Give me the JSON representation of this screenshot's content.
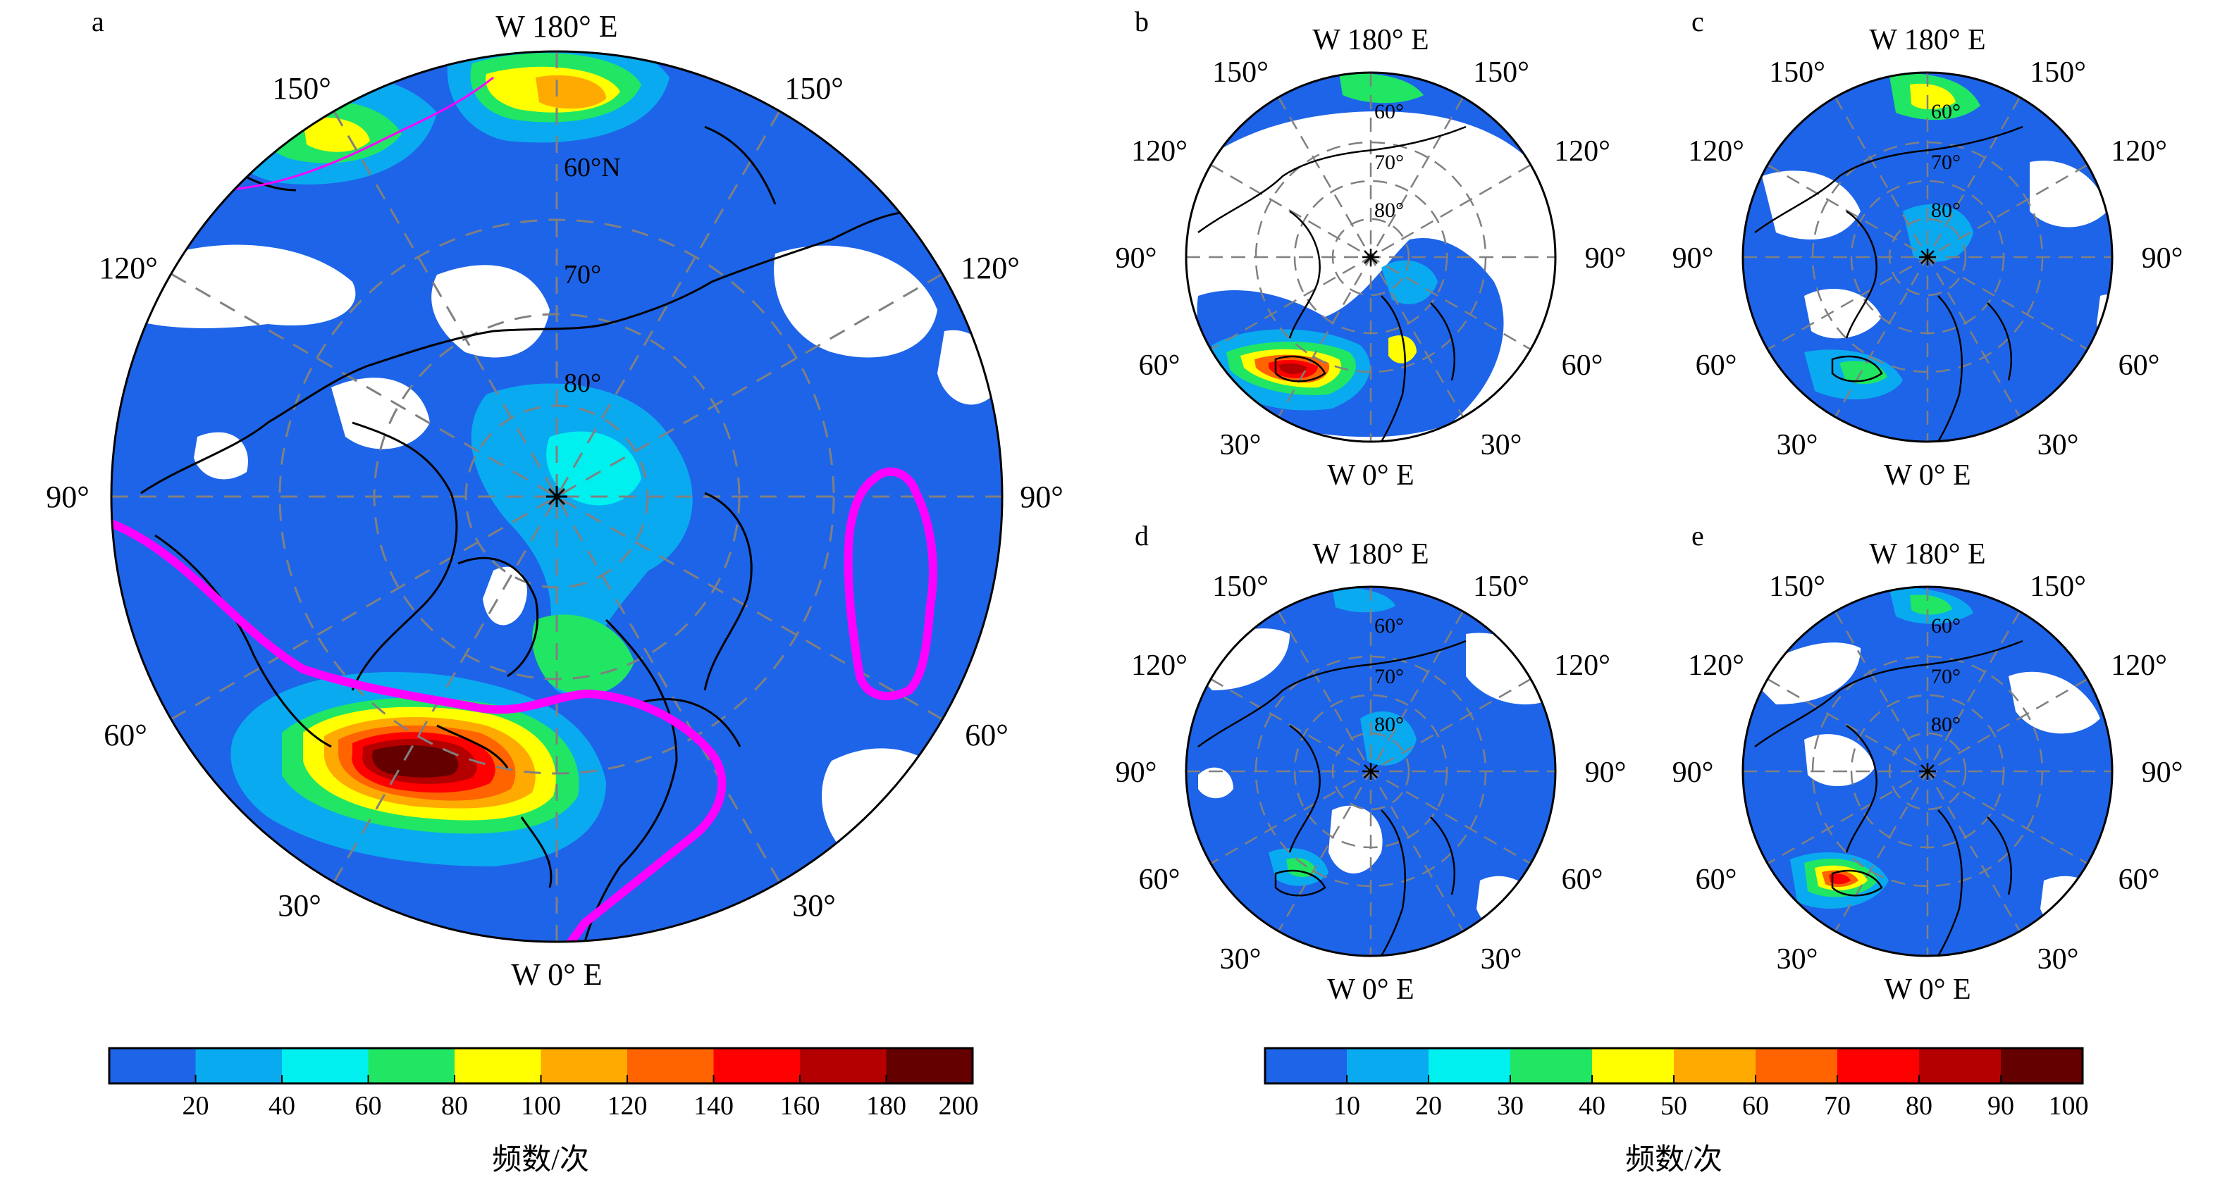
{
  "panels": [
    {
      "id": "a",
      "letter": "a",
      "top_label": "W 180° E",
      "bottom_label": "W 0° E",
      "lon_left": [
        "150°",
        "120°",
        "90°",
        "60°",
        "30°"
      ],
      "lon_right": [
        "150°",
        "120°",
        "90°",
        "60°",
        "30°"
      ],
      "lat_labels": [
        "60°N",
        "70°",
        "80°"
      ]
    },
    {
      "id": "b",
      "letter": "b",
      "top_label": "W 180° E",
      "bottom_label": "W 0° E",
      "lon_left": [
        "150°",
        "120°",
        "90°",
        "60°",
        "30°"
      ],
      "lon_right": [
        "150°",
        "120°",
        "90°",
        "60°",
        "30°"
      ],
      "lat_labels": [
        "60°",
        "70°",
        "80°"
      ]
    },
    {
      "id": "c",
      "letter": "c",
      "top_label": "W 180° E",
      "bottom_label": "W 0° E",
      "lon_left": [
        "150°",
        "120°",
        "90°",
        "60°",
        "30°"
      ],
      "lon_right": [
        "150°",
        "120°",
        "90°",
        "60°",
        "30°"
      ],
      "lat_labels": [
        "60°",
        "70°",
        "80°"
      ]
    },
    {
      "id": "d",
      "letter": "d",
      "top_label": "W 180° E",
      "bottom_label": "W 0° E",
      "lon_left": [
        "150°",
        "120°",
        "90°",
        "60°",
        "30°"
      ],
      "lon_right": [
        "150°",
        "120°",
        "90°",
        "60°",
        "30°"
      ],
      "lat_labels": [
        "60°",
        "70°",
        "80°"
      ]
    },
    {
      "id": "e",
      "letter": "e",
      "top_label": "W 180° E",
      "bottom_label": "W 0° E",
      "lon_left": [
        "150°",
        "120°",
        "90°",
        "60°",
        "30°"
      ],
      "lon_right": [
        "150°",
        "120°",
        "90°",
        "60°",
        "30°"
      ],
      "lat_labels": [
        "60°",
        "70°",
        "80°"
      ]
    }
  ],
  "colorbars": [
    {
      "id": "left",
      "title": "频数/次",
      "ticks": [
        "20",
        "40",
        "60",
        "80",
        "100",
        "120",
        "140",
        "160",
        "180",
        "200"
      ]
    },
    {
      "id": "right",
      "title": "频数/次",
      "ticks": [
        "10",
        "20",
        "30",
        "40",
        "50",
        "60",
        "70",
        "80",
        "90",
        "100"
      ]
    }
  ],
  "palette": [
    "#1e64e8",
    "#0aaaf0",
    "#00f0f0",
    "#20e664",
    "#ffff00",
    "#ffaa00",
    "#ff6400",
    "#ff0000",
    "#b40000",
    "#640000"
  ],
  "colors": {
    "contour_magenta": "#ff00ff",
    "graticule": "#808080",
    "coastline": "#000000",
    "no_data": "#ffffff"
  }
}
